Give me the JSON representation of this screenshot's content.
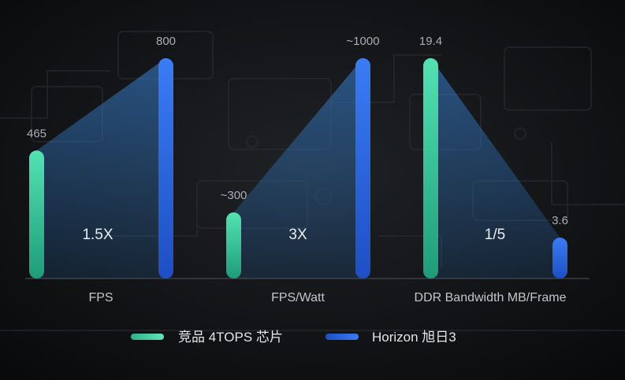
{
  "chart_data": {
    "type": "bar",
    "categories": [
      "FPS",
      "FPS/Watt",
      "DDR Bandwidth MB/Frame"
    ],
    "series": [
      {
        "name": "竞品 4TOPS 芯片",
        "color": "#3fd6a3",
        "values": [
          465,
          300,
          19.4
        ],
        "labels": [
          "465",
          "~300",
          "19.4"
        ]
      },
      {
        "name": "Horizon 旭日3",
        "color": "#2a6bea",
        "values": [
          800,
          1000,
          3.6
        ],
        "labels": [
          "800",
          "~1000",
          "3.6"
        ]
      }
    ],
    "ratios": [
      "1.5X",
      "3X",
      "1/5"
    ],
    "legend_position": "bottom",
    "grid": false
  }
}
